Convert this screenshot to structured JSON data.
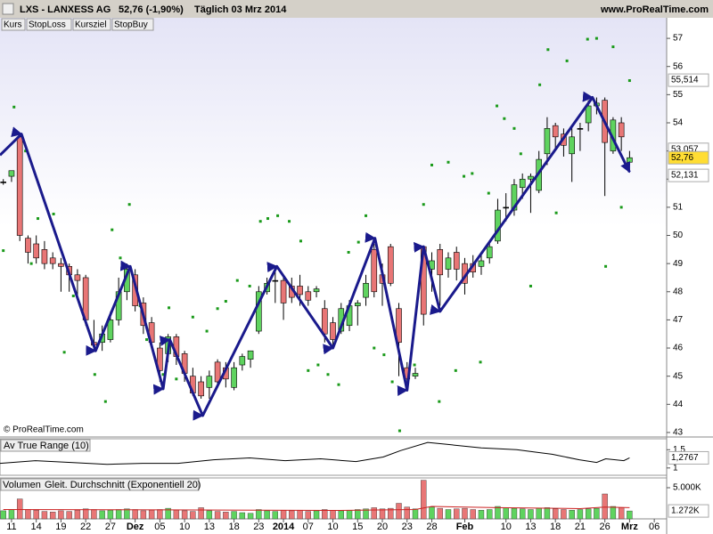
{
  "header": {
    "symbol": "LXS - LANXESS AG",
    "quote": "52,76 (-1,90%)",
    "period": "Täglich  03 Mrz 2014",
    "site": "www.ProRealTime.com"
  },
  "copyright": "© ProRealTime.com",
  "chart_data": [
    {
      "type": "candlestick",
      "legend_buttons": [
        {
          "label": "Kurs",
          "color": "#000000"
        },
        {
          "label": "StopLoss",
          "color": "#dd2222"
        },
        {
          "label": "Kursziel",
          "color": "#229922"
        },
        {
          "label": "StopBuy",
          "color": "#222288"
        }
      ],
      "up_color": "#5fd35f",
      "down_color": "#e87676",
      "xlim": [
        -0.4,
        80.5
      ],
      "ylim": [
        42.84,
        57.73
      ],
      "yticks": [
        43,
        44,
        45,
        46,
        47,
        48,
        49,
        50,
        51,
        52,
        53,
        54,
        55,
        56,
        57
      ],
      "xticks": [
        {
          "value": 1,
          "label": "11"
        },
        {
          "value": 4,
          "label": "14"
        },
        {
          "value": 7,
          "label": "19"
        },
        {
          "value": 10,
          "label": "22"
        },
        {
          "value": 13,
          "label": "27"
        },
        {
          "value": 16,
          "label": "Dez"
        },
        {
          "value": 19,
          "label": "05"
        },
        {
          "value": 22,
          "label": "10"
        },
        {
          "value": 25,
          "label": "13"
        },
        {
          "value": 28,
          "label": "18"
        },
        {
          "value": 31,
          "label": "23"
        },
        {
          "value": 34,
          "label": "2014"
        },
        {
          "value": 37,
          "label": "07"
        },
        {
          "value": 40,
          "label": "10"
        },
        {
          "value": 43,
          "label": "15"
        },
        {
          "value": 46,
          "label": "20"
        },
        {
          "value": 49,
          "label": "23"
        },
        {
          "value": 52,
          "label": "28"
        },
        {
          "value": 56,
          "label": "Feb"
        },
        {
          "value": 61,
          "label": "10"
        },
        {
          "value": 64,
          "label": "13"
        },
        {
          "value": 67,
          "label": "18"
        },
        {
          "value": 70,
          "label": "21"
        },
        {
          "value": 73,
          "label": "26"
        },
        {
          "value": 76,
          "label": "Mrz"
        },
        {
          "value": 79,
          "label": "06"
        }
      ],
      "open": [
        51.9,
        52.1,
        53.5,
        49.9,
        49.7,
        49.5,
        49.2,
        49.0,
        48.9,
        48.6,
        48.5,
        46.2,
        46.2,
        46.3,
        47.0,
        48.0,
        48.6,
        47.6,
        46.9,
        46.0,
        45.8,
        46.4,
        45.8,
        45.0,
        44.8,
        44.6,
        45.5,
        45.3,
        44.6,
        45.4,
        45.6,
        46.6,
        48.0,
        48.4,
        48.4,
        48.2,
        48.2,
        48.0,
        48.0,
        47.4,
        46.9,
        46.6,
        46.8,
        47.5,
        47.8,
        49.5,
        48.6,
        49.6,
        47.4,
        45.3,
        45.0,
        49.6,
        48.8,
        49.5,
        48.8,
        49.4,
        49.0,
        49.0,
        48.9,
        49.2,
        49.8,
        51.0,
        50.9,
        51.7,
        52.0,
        51.6,
        52.9,
        53.9,
        53.6,
        52.9,
        53.8,
        54.0,
        54.6,
        54.8,
        53.0,
        54.0,
        52.6
      ],
      "high": [
        52.0,
        52.3,
        53.6,
        50.0,
        50.0,
        49.8,
        49.4,
        49.2,
        49.0,
        48.8,
        48.6,
        47.0,
        46.8,
        47.3,
        48.5,
        49.0,
        48.8,
        47.8,
        47.1,
        46.2,
        46.5,
        46.5,
        45.9,
        45.3,
        45.0,
        45.2,
        45.6,
        45.5,
        45.5,
        45.8,
        45.9,
        48.2,
        48.5,
        48.7,
        48.6,
        48.5,
        48.6,
        48.2,
        48.2,
        47.7,
        47.1,
        47.6,
        47.7,
        47.7,
        48.6,
        49.7,
        49.0,
        49.7,
        47.6,
        45.5,
        45.3,
        49.6,
        49.4,
        49.7,
        49.4,
        49.6,
        49.2,
        49.3,
        49.3,
        49.8,
        51.3,
        51.5,
        52.0,
        52.2,
        52.2,
        53.0,
        54.2,
        54.0,
        53.8,
        53.8,
        54.0,
        54.8,
        54.9,
        54.9,
        54.2,
        54.2,
        53.0
      ],
      "low": [
        51.8,
        51.9,
        49.8,
        49.0,
        49.0,
        48.8,
        48.8,
        48.0,
        48.0,
        47.8,
        46.8,
        45.9,
        45.9,
        46.2,
        46.8,
        47.7,
        47.3,
        46.5,
        46.0,
        44.8,
        45.5,
        45.4,
        44.8,
        44.3,
        44.2,
        44.2,
        44.6,
        44.6,
        44.5,
        45.2,
        45.3,
        46.5,
        47.9,
        47.6,
        47.0,
        47.6,
        47.5,
        47.5,
        47.8,
        46.2,
        46.0,
        46.5,
        46.6,
        46.8,
        47.5,
        47.8,
        47.5,
        48.2,
        45.0,
        44.6,
        44.9,
        46.8,
        48.0,
        47.5,
        48.5,
        48.4,
        47.9,
        48.5,
        48.6,
        49.0,
        49.7,
        50.5,
        50.7,
        51.3,
        50.8,
        51.5,
        52.5,
        53.0,
        52.8,
        51.9,
        53.0,
        53.7,
        54.3,
        51.4,
        52.9,
        53.0,
        52.5
      ],
      "close": [
        51.9,
        52.3,
        50.0,
        49.4,
        49.2,
        49.0,
        49.0,
        48.9,
        48.6,
        48.4,
        47.0,
        46.1,
        46.5,
        47.0,
        48.0,
        48.8,
        47.5,
        46.8,
        46.2,
        45.2,
        46.4,
        45.7,
        45.1,
        44.4,
        44.3,
        45.0,
        44.8,
        44.9,
        45.3,
        45.7,
        45.9,
        48.0,
        48.3,
        48.4,
        47.6,
        47.8,
        47.9,
        47.7,
        48.1,
        46.5,
        46.3,
        47.4,
        47.5,
        47.6,
        48.3,
        48.0,
        48.3,
        48.3,
        46.2,
        44.9,
        45.1,
        47.2,
        49.1,
        48.6,
        49.2,
        48.8,
        48.3,
        48.7,
        49.1,
        49.6,
        50.9,
        51.0,
        51.8,
        52.0,
        52.1,
        52.7,
        53.8,
        53.5,
        53.2,
        53.5,
        53.8,
        54.6,
        54.7,
        53.3,
        54.1,
        53.5,
        52.76
      ],
      "overlays": [
        {
          "type": "scatter",
          "color": "#1a9a1a",
          "x": [
            0,
            1.3,
            2.7,
            3.4,
            4.2,
            6.1,
            7.4,
            8.5,
            11.1,
            12.4,
            13.2,
            14.2,
            15.3,
            16.6,
            17.4,
            19.4,
            20.1,
            21,
            23,
            24.7,
            26,
            27,
            28.4,
            29.9,
            31.2,
            32.1,
            33.3,
            34.7,
            36.1,
            37,
            38.2,
            39.4,
            40.7,
            41.9,
            43.1,
            44,
            45,
            46.2,
            47.2,
            48.1,
            49.9,
            51,
            52,
            52.9,
            54,
            54.9,
            55.9,
            56.9,
            57.9,
            58.9,
            59.9,
            60.8,
            62,
            62.8,
            64,
            65.1,
            66.1,
            67.1,
            68.4,
            70.9,
            72,
            73.1,
            74,
            75,
            76
          ],
          "values": [
            49.46,
            54.56,
            53.0,
            49.0,
            50.6,
            50.76,
            45.85,
            47.85,
            45.06,
            44.1,
            50.2,
            49.2,
            51.1,
            47.5,
            46.3,
            45.06,
            47.43,
            44.9,
            47.1,
            46.6,
            47.4,
            47.66,
            48.4,
            48.2,
            50.5,
            50.6,
            50.7,
            50.5,
            49.8,
            45.2,
            45.4,
            45.06,
            44.7,
            49.4,
            49.76,
            50.7,
            46.0,
            45.76,
            44.8,
            43.06,
            45.4,
            51.1,
            52.5,
            44.1,
            52.6,
            45.2,
            52.1,
            52.2,
            45.5,
            51.5,
            54.6,
            54.15,
            53.8,
            52.9,
            48.2,
            55.35,
            56.6,
            50.8,
            56.2,
            56.97,
            57.0,
            48.9,
            56.7,
            51.0,
            55.5
          ]
        },
        {
          "type": "zigzag",
          "color": "#1a1a8c",
          "x": [
            -0.4,
            2.2,
            11.2,
            15.4,
            19.4,
            20.2,
            24.2,
            33.2,
            40,
            45.1,
            49,
            51,
            53,
            71.5,
            76
          ],
          "values": [
            52.85,
            53.6,
            45.9,
            48.9,
            44.55,
            46.3,
            43.6,
            48.9,
            46.0,
            49.9,
            44.5,
            49.6,
            47.3,
            54.9,
            52.25
          ]
        }
      ],
      "markers": [
        {
          "value": 55.514,
          "label": "55,514",
          "color": "#2a8a2a",
          "bg": "#ffffff"
        },
        {
          "value": 53.057,
          "label": "53,057",
          "color": "#777777",
          "bg": "#ffffff"
        },
        {
          "value": 52.76,
          "label": "52,76",
          "color": "#000000",
          "bg": "#ffdd33"
        },
        {
          "value": 52.131,
          "label": "52,131",
          "color": "#cc2222",
          "bg": "#ffffff"
        }
      ]
    },
    {
      "type": "line",
      "title": "Av True Range (10)",
      "color": "#000000",
      "xlim": [
        -0.4,
        80.5
      ],
      "ylim": [
        0.8,
        1.8
      ],
      "yticks": [
        {
          "value": 1.5,
          "label": "1,5"
        },
        1
      ],
      "x": [
        -0.4,
        3.9,
        8.2,
        12.6,
        16.9,
        21.2,
        25.5,
        29.9,
        34.2,
        38.5,
        42.8,
        46.1,
        48.2,
        51.5,
        53.7,
        58,
        62.3,
        66.6,
        69.9,
        72,
        73.1,
        75.3,
        76
      ],
      "values": [
        1.125,
        1.2,
        1.15,
        1.1,
        1.125,
        1.125,
        1.225,
        1.275,
        1.2,
        1.25,
        1.175,
        1.3,
        1.475,
        1.7,
        1.65,
        1.55,
        1.5,
        1.375,
        1.225,
        1.15,
        1.25,
        1.2,
        1.2767
      ],
      "markers": [
        {
          "value": 1.2767,
          "label": "1,2767",
          "color": "#000000",
          "bg": "#ffffff"
        }
      ]
    },
    {
      "type": "bar",
      "title": "Volumen",
      "subtitle": "Gleit. Durchschnitt (Exponentiell 20)",
      "xlim": [
        -0.4,
        80.5
      ],
      "ylim": [
        0,
        6570
      ],
      "yticks": [
        {
          "value": 5000,
          "label": "5.000K"
        }
      ],
      "values": [
        1300,
        1500,
        3200,
        1500,
        1400,
        1200,
        1100,
        1300,
        1200,
        1400,
        1600,
        1500,
        1300,
        1400,
        1500,
        1600,
        1500,
        1300,
        1400,
        1500,
        1700,
        1400,
        1300,
        1200,
        1800,
        1300,
        1200,
        1100,
        1200,
        1000,
        900,
        1500,
        1300,
        1200,
        1400,
        1300,
        1400,
        1200,
        1300,
        1500,
        1400,
        1300,
        1400,
        1500,
        1600,
        1800,
        1600,
        1700,
        2500,
        1900,
        1600,
        6200,
        1900,
        1700,
        1500,
        1600,
        1700,
        1500,
        1400,
        1500,
        2000,
        1800,
        1700,
        1600,
        1500,
        1700,
        1800,
        1600,
        1500,
        1400,
        1500,
        1600,
        1700,
        4000,
        2000,
        1800,
        1272
      ],
      "average": {
        "color": "#cc2222",
        "x": [
          0,
          20,
          40,
          50,
          52,
          60,
          70,
          73,
          76
        ],
        "values": [
          1500,
          1450,
          1350,
          1500,
          2000,
          1800,
          1650,
          1900,
          1800
        ]
      },
      "markers": [
        {
          "value": 1272,
          "label": "1.272K",
          "color": "#cc2222",
          "bg": "#ffffff"
        }
      ]
    }
  ]
}
